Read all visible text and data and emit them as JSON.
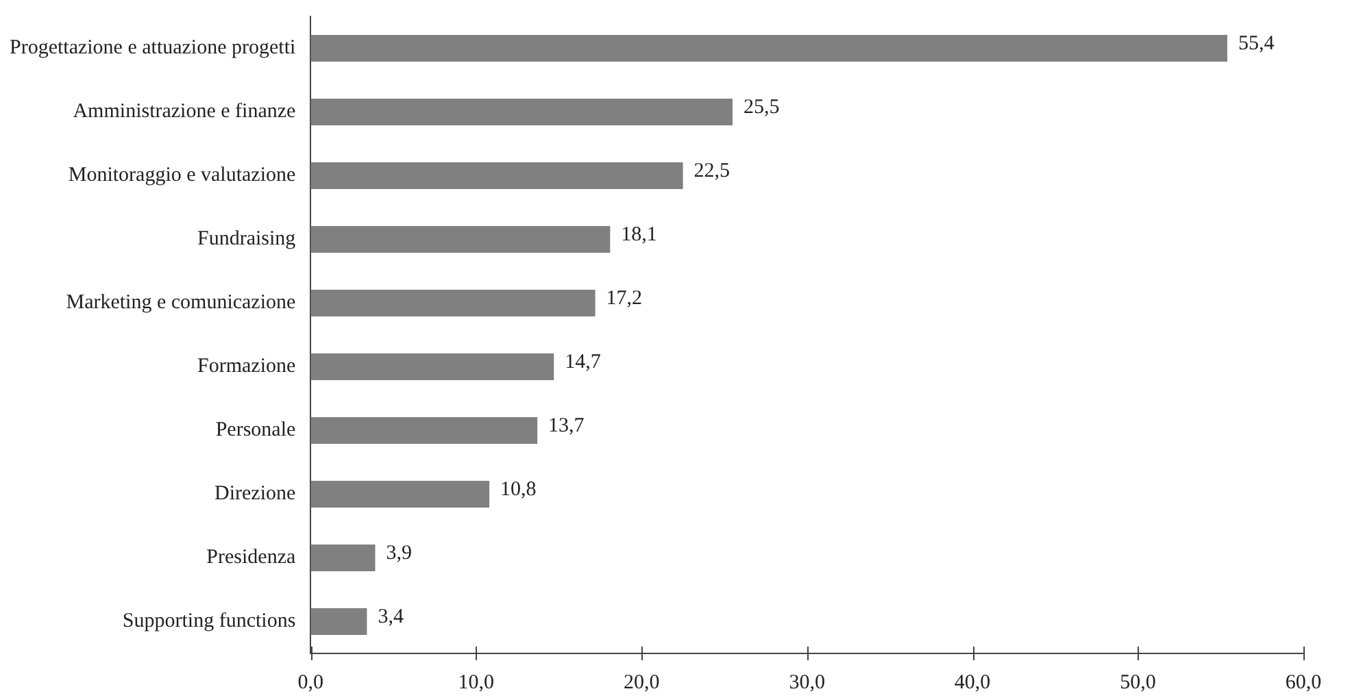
{
  "chart_data": {
    "type": "bar",
    "orientation": "horizontal",
    "categories": [
      "Progettazione e attuazione progetti",
      "Amministrazione e finanze",
      "Monitoraggio e valutazione",
      "Fundraising",
      "Marketing e comunicazione",
      "Formazione",
      "Personale",
      "Direzione",
      "Presidenza",
      "Supporting functions"
    ],
    "values": [
      55.4,
      25.5,
      22.5,
      18.1,
      17.2,
      14.7,
      13.7,
      10.8,
      3.9,
      3.4
    ],
    "value_labels": [
      "55,4",
      "25,5",
      "22,5",
      "18,1",
      "17,2",
      "14,7",
      "13,7",
      "10,8",
      "3,9",
      "3,4"
    ],
    "color": "#808080",
    "xlim": [
      0,
      60
    ],
    "xticks": [
      {
        "value": 0,
        "label": "0,0"
      },
      {
        "value": 10,
        "label": "10,0"
      },
      {
        "value": 20,
        "label": "20,0"
      },
      {
        "value": 30,
        "label": "30,0"
      },
      {
        "value": 40,
        "label": "40,0"
      },
      {
        "value": 50,
        "label": "50,0"
      },
      {
        "value": 60,
        "label": "60,0"
      }
    ],
    "grid": false,
    "legend": false
  }
}
